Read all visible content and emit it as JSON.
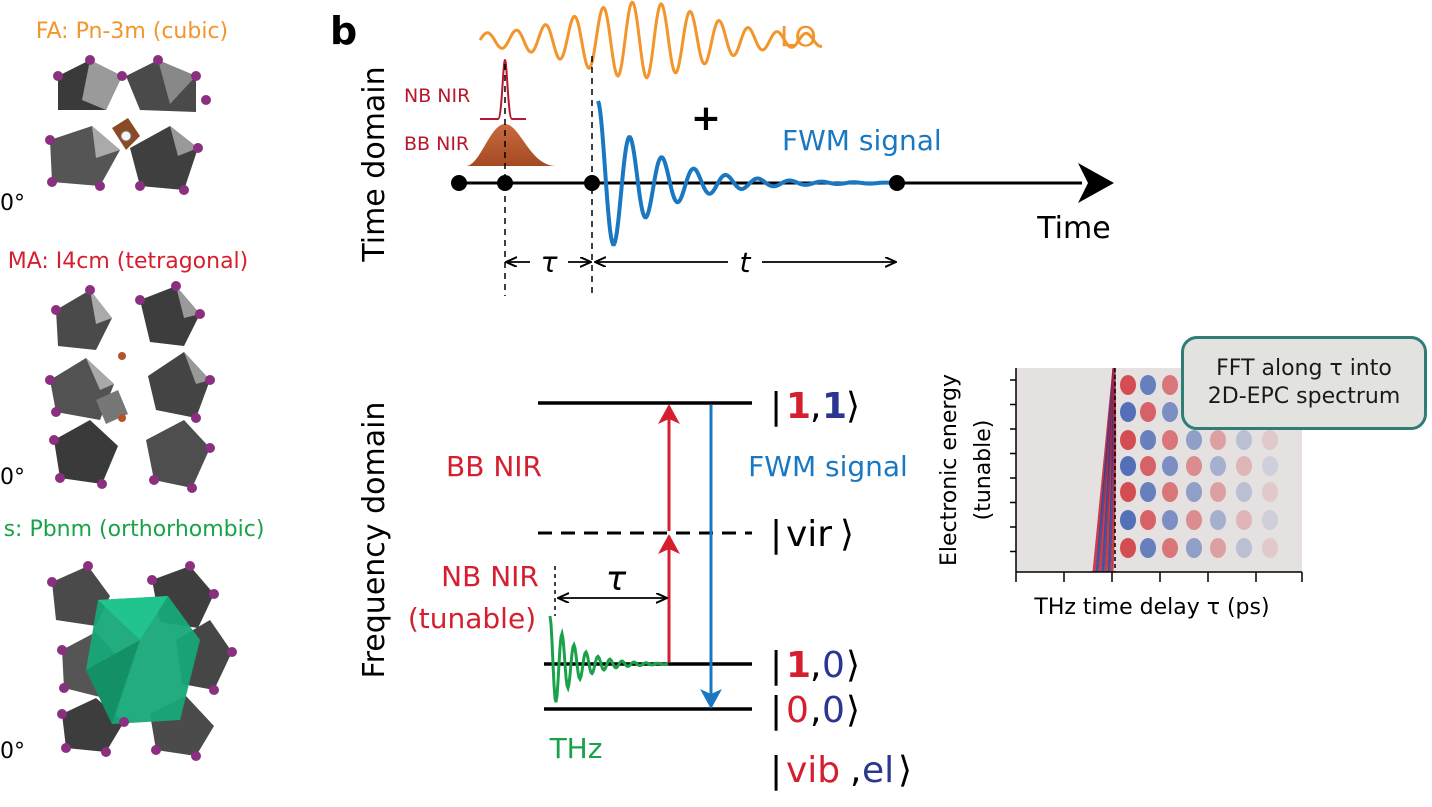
{
  "panel_letter": "b",
  "colors": {
    "orange": "#f2952b",
    "red": "#d51f2e",
    "blue": "#1a78c2",
    "navy": "#2c3590",
    "green": "#1aa24a",
    "brown": "#b5532a",
    "teal": "#2f7d76",
    "dark_red": "#b8172e"
  },
  "left_panel": {
    "structures": [
      {
        "label": "FA: Pn-3m (cubic)",
        "color": "#f2952b"
      },
      {
        "label": "MA: I4cm (tetragonal)",
        "color": "#d51f2e"
      },
      {
        "label": "s: Pbnm (orthorhombic)",
        "color": "#1aa24a"
      }
    ],
    "angle_fragments": [
      "0°",
      "0°",
      "0°"
    ]
  },
  "time_domain": {
    "axis_label": "Time domain",
    "time_label": "Time",
    "lo_label": "LO",
    "plus": "+",
    "fwm_label": "FWM signal",
    "nb_nir_label": "NB NIR",
    "bb_nir_label": "BB NIR",
    "tau": "τ",
    "t": "t"
  },
  "frequency_domain": {
    "axis_label": "Frequency domain",
    "bb_nir": "BB NIR",
    "fwm_signal": "FWM signal",
    "nb_nir": "NB NIR",
    "tunable": "(tunable)",
    "thz": "THz",
    "tau": "τ",
    "states": {
      "s11": {
        "a": "1",
        "b": "1"
      },
      "vir": "vir",
      "s10": {
        "a": "1",
        "b": "0"
      },
      "s00": {
        "a": "0",
        "b": "0"
      },
      "vibel": {
        "a": "vib",
        "b": "el"
      }
    }
  },
  "spectrum": {
    "ylabel_line1": "Electronic energy",
    "ylabel_line2": "(tunable)",
    "xlabel": "THz time delay τ (ps)",
    "callout_line1": "FFT along τ into",
    "callout_line2": "2D-EPC spectrum"
  }
}
